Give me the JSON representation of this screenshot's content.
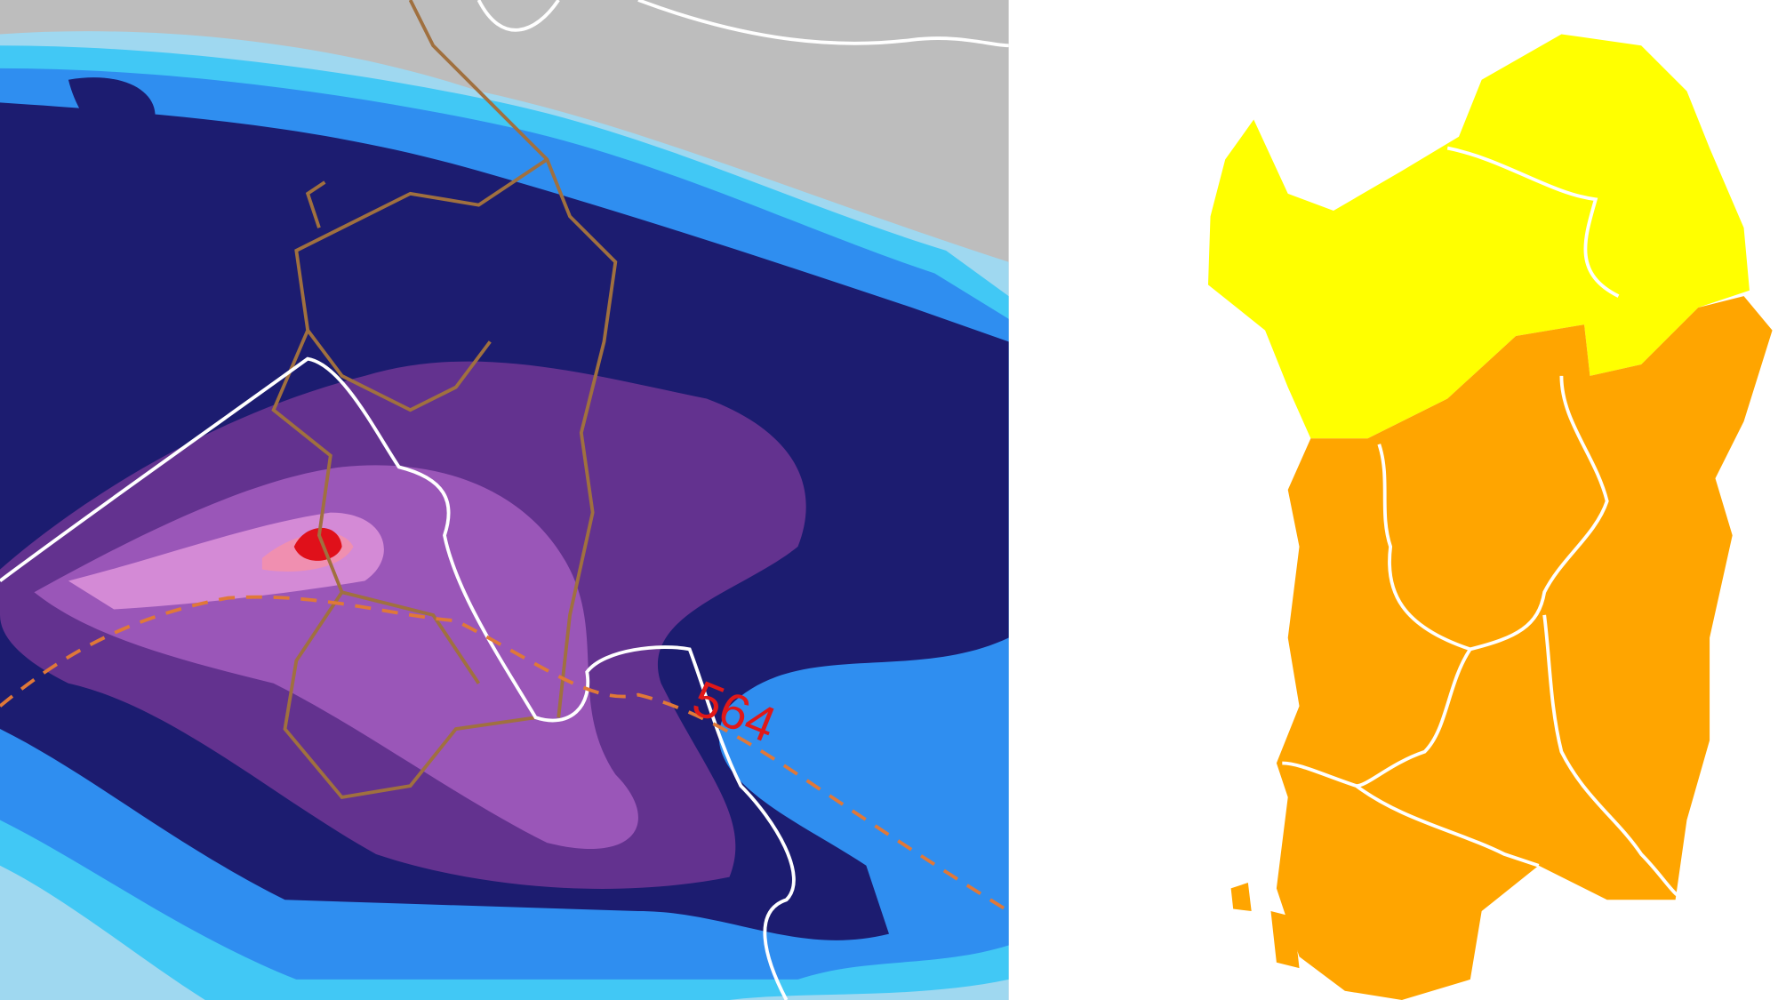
{
  "map": {
    "label": "564"
  }
}
